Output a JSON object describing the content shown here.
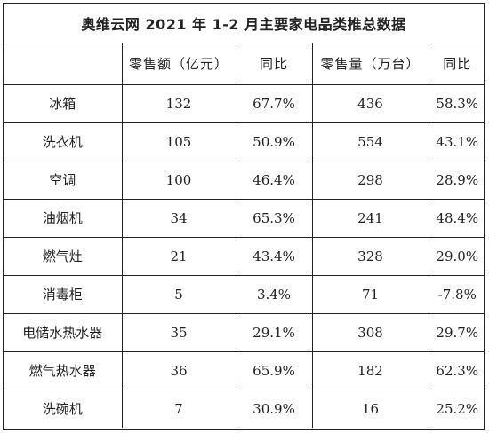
{
  "title": "奥维云网 2021 年 1-2 月主要家电品类推总数据",
  "headers": {
    "category": "",
    "sales_amount": "零售额（亿元）",
    "yoy_amount": "同比",
    "sales_volume": "零售量（万台）",
    "yoy_volume": "同比"
  },
  "rows": [
    {
      "name": "冰箱",
      "amount": "132",
      "amount_yoy": "67.7%",
      "volume": "436",
      "volume_yoy": "58.3%"
    },
    {
      "name": "洗衣机",
      "amount": "105",
      "amount_yoy": "50.9%",
      "volume": "554",
      "volume_yoy": "43.1%"
    },
    {
      "name": "空调",
      "amount": "100",
      "amount_yoy": "46.4%",
      "volume": "298",
      "volume_yoy": "28.9%"
    },
    {
      "name": "油烟机",
      "amount": "34",
      "amount_yoy": "65.3%",
      "volume": "241",
      "volume_yoy": "48.4%"
    },
    {
      "name": "燃气灶",
      "amount": "21",
      "amount_yoy": "43.4%",
      "volume": "328",
      "volume_yoy": "29.0%"
    },
    {
      "name": "消毒柜",
      "amount": "5",
      "amount_yoy": "3.4%",
      "volume": "71",
      "volume_yoy": "-7.8%"
    },
    {
      "name": "电储水热水器",
      "amount": "35",
      "amount_yoy": "29.1%",
      "volume": "308",
      "volume_yoy": "29.7%"
    },
    {
      "name": "燃气热水器",
      "amount": "36",
      "amount_yoy": "65.9%",
      "volume": "182",
      "volume_yoy": "62.3%"
    },
    {
      "name": "洗碗机",
      "amount": "7",
      "amount_yoy": "30.9%",
      "volume": "16",
      "volume_yoy": "25.2%"
    }
  ]
}
